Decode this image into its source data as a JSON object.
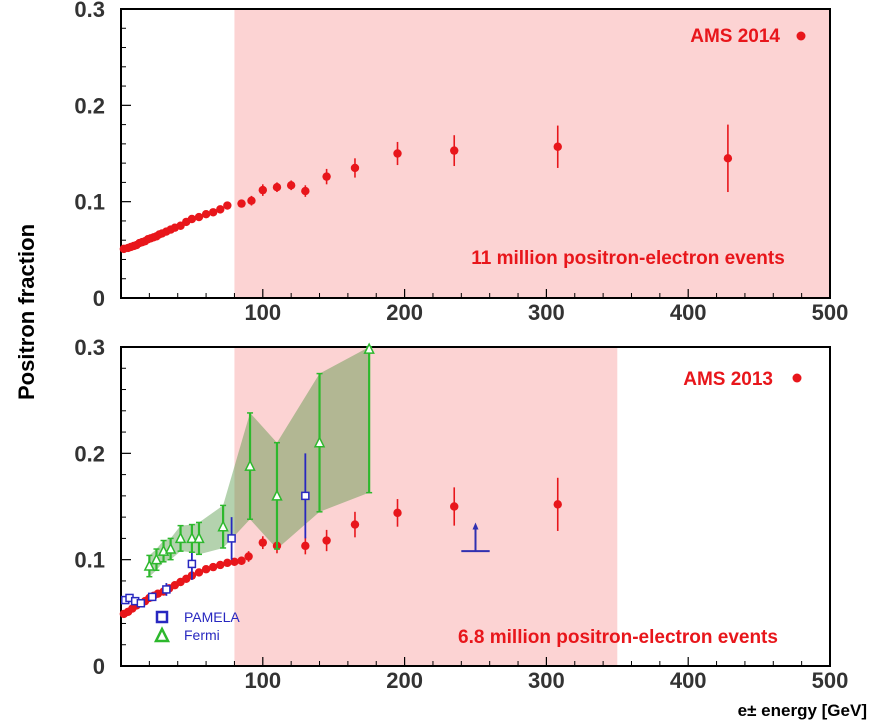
{
  "ylabel": "Positron fraction",
  "xlabel": "e± energy [GeV]",
  "colors": {
    "ams": "#e8161b",
    "shade": "#fcd3d3",
    "pamela": "#2828c0",
    "fermi": "#2db82d",
    "fermi_band": "#3a8a2a",
    "upper_limit": "#3030b0"
  },
  "chart_data": [
    {
      "type": "scatter",
      "title": "",
      "xlabel": "",
      "ylabel": "Positron fraction",
      "xlim": [
        0,
        500
      ],
      "ylim": [
        0,
        0.3
      ],
      "x_ticks": [
        100,
        200,
        300,
        400,
        500
      ],
      "y_ticks": [
        0,
        0.1,
        0.2,
        0.3
      ],
      "shaded_region": [
        80,
        500
      ],
      "legend": {
        "label": "AMS 2014",
        "position": "top-right"
      },
      "annotation": "11 million positron-electron events",
      "series": [
        {
          "name": "AMS 2014",
          "x": [
            2,
            5,
            7,
            9,
            11,
            13,
            15,
            17,
            19,
            21,
            23,
            25,
            27,
            29,
            32,
            35,
            38,
            42,
            46,
            50,
            55,
            60,
            65,
            70,
            75,
            85,
            92,
            100,
            110,
            120,
            130,
            145,
            165,
            195,
            235,
            308,
            428
          ],
          "y": [
            0.051,
            0.052,
            0.053,
            0.054,
            0.055,
            0.057,
            0.058,
            0.059,
            0.061,
            0.062,
            0.063,
            0.064,
            0.066,
            0.067,
            0.069,
            0.071,
            0.073,
            0.075,
            0.079,
            0.082,
            0.084,
            0.087,
            0.089,
            0.092,
            0.096,
            0.098,
            0.101,
            0.112,
            0.115,
            0.117,
            0.111,
            0.126,
            0.135,
            0.15,
            0.153,
            0.157,
            0.145
          ],
          "err": [
            0.001,
            0.001,
            0.001,
            0.001,
            0.001,
            0.001,
            0.001,
            0.001,
            0.001,
            0.001,
            0.001,
            0.001,
            0.001,
            0.001,
            0.001,
            0.001,
            0.001,
            0.002,
            0.002,
            0.002,
            0.002,
            0.002,
            0.003,
            0.003,
            0.004,
            0.004,
            0.005,
            0.006,
            0.005,
            0.005,
            0.006,
            0.008,
            0.01,
            0.012,
            0.016,
            0.022,
            0.035
          ]
        }
      ]
    },
    {
      "type": "scatter",
      "title": "",
      "xlabel": "e± energy [GeV]",
      "ylabel": "Positron fraction",
      "xlim": [
        0,
        500
      ],
      "ylim": [
        0,
        0.3
      ],
      "x_ticks": [
        100,
        200,
        300,
        400,
        500
      ],
      "y_ticks": [
        0,
        0.1,
        0.2,
        0.3
      ],
      "shaded_region": [
        80,
        350
      ],
      "legend": {
        "label": "AMS 2013",
        "position": "top-right"
      },
      "annotation": "6.8 million positron-electron events",
      "legend_small": [
        {
          "label": "PAMELA",
          "marker": "square"
        },
        {
          "label": "Fermi",
          "marker": "triangle"
        }
      ],
      "series": [
        {
          "name": "AMS 2013",
          "x": [
            2,
            5,
            8,
            11,
            14,
            17,
            20,
            23,
            26,
            30,
            34,
            38,
            42,
            46,
            50,
            55,
            60,
            65,
            70,
            75,
            80,
            85,
            90,
            100,
            110,
            130,
            145,
            165,
            195,
            235,
            308
          ],
          "y": [
            0.049,
            0.051,
            0.054,
            0.057,
            0.059,
            0.061,
            0.064,
            0.066,
            0.068,
            0.07,
            0.073,
            0.076,
            0.079,
            0.082,
            0.085,
            0.088,
            0.091,
            0.093,
            0.095,
            0.097,
            0.098,
            0.099,
            0.103,
            0.116,
            0.113,
            0.113,
            0.118,
            0.133,
            0.144,
            0.15,
            0.152
          ],
          "err": [
            0.001,
            0.001,
            0.001,
            0.001,
            0.001,
            0.001,
            0.001,
            0.001,
            0.001,
            0.001,
            0.001,
            0.002,
            0.002,
            0.002,
            0.002,
            0.002,
            0.002,
            0.003,
            0.003,
            0.003,
            0.003,
            0.004,
            0.005,
            0.006,
            0.007,
            0.008,
            0.01,
            0.012,
            0.013,
            0.018,
            0.025
          ]
        },
        {
          "name": "PAMELA",
          "x": [
            3,
            6,
            10,
            14,
            22,
            32,
            50,
            78,
            130
          ],
          "y": [
            0.062,
            0.064,
            0.061,
            0.059,
            0.065,
            0.072,
            0.096,
            0.12,
            0.16
          ],
          "err": [
            0.003,
            0.003,
            0.003,
            0.003,
            0.004,
            0.006,
            0.015,
            0.02,
            0.04
          ]
        },
        {
          "name": "Fermi",
          "x": [
            20,
            25,
            30,
            35,
            42,
            50,
            55,
            72,
            91,
            110,
            140,
            175
          ],
          "y": [
            0.094,
            0.1,
            0.108,
            0.11,
            0.12,
            0.12,
            0.12,
            0.131,
            0.188,
            0.16,
            0.21,
            0.298
          ],
          "err": [
            0.01,
            0.01,
            0.01,
            0.01,
            0.012,
            0.013,
            0.015,
            0.02,
            0.05,
            0.05,
            0.065,
            0.135
          ]
        }
      ],
      "upper_limit": {
        "x": [
          240,
          260
        ],
        "y": 0.108,
        "arrow_to": 0.135
      }
    }
  ]
}
